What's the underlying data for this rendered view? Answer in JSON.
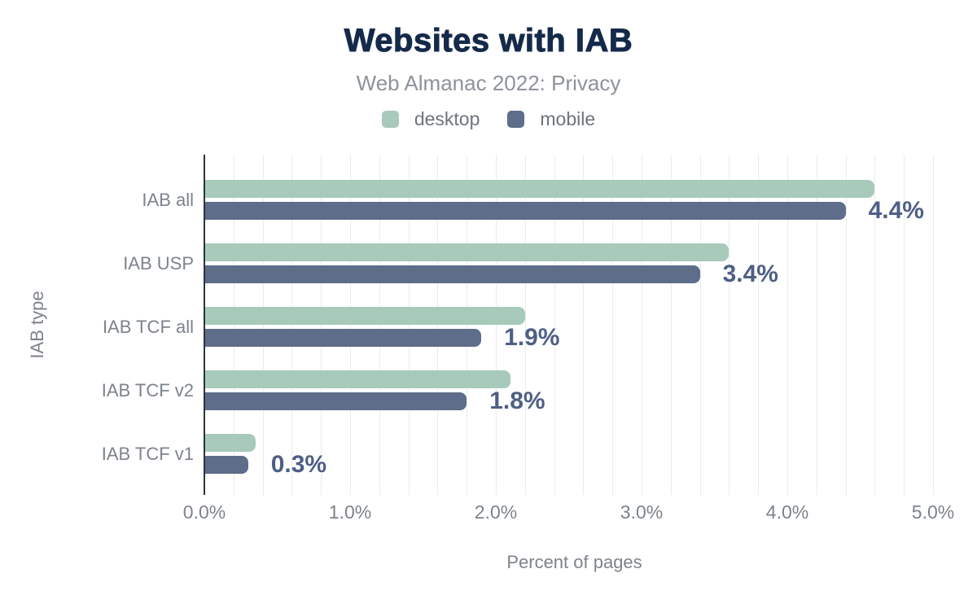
{
  "header": {
    "title": "Websites with IAB",
    "subtitle": "Web Almanac 2022: Privacy"
  },
  "legend": {
    "items": [
      {
        "label": "desktop",
        "color": "#a7cabb"
      },
      {
        "label": "mobile",
        "color": "#5e6d89"
      }
    ]
  },
  "chart_data": {
    "type": "bar",
    "orientation": "horizontal",
    "title": "Websites with IAB",
    "subtitle": "Web Almanac 2022: Privacy",
    "xlabel": "Percent of pages",
    "ylabel": "IAB type",
    "xlim": [
      0,
      5.08
    ],
    "x_tick_values": [
      0,
      1,
      2,
      3,
      4,
      5
    ],
    "x_tick_labels": [
      "0.0%",
      "1.0%",
      "2.0%",
      "3.0%",
      "4.0%",
      "5.0%"
    ],
    "grid": {
      "minor_step_percent": 0.2,
      "color": "#ebebeb",
      "vertical": true
    },
    "categories": [
      "IAB all",
      "IAB USP",
      "IAB TCF all",
      "IAB TCF v2",
      "IAB TCF v1"
    ],
    "series": [
      {
        "name": "desktop",
        "color": "#a7cabb",
        "values": [
          4.6,
          3.6,
          2.2,
          2.1,
          0.35
        ]
      },
      {
        "name": "mobile",
        "color": "#5e6d89",
        "values": [
          4.4,
          3.4,
          1.9,
          1.8,
          0.3
        ]
      }
    ],
    "annotations": {
      "annotated_series": "mobile",
      "labels": [
        "4.4%",
        "3.4%",
        "1.9%",
        "1.8%",
        "0.3%"
      ],
      "color": "#4e5f84"
    },
    "legend_position": "top"
  },
  "colors": {
    "background": "#ffffff",
    "title": "#152a4a",
    "subtitle": "#8d939a",
    "axis_text": "#7d838b",
    "axis_line": "#2e3338",
    "gridline": "#ebebeb",
    "desktop": "#a7cabb",
    "mobile": "#5e6d89",
    "value_label": "#4e5f84"
  }
}
